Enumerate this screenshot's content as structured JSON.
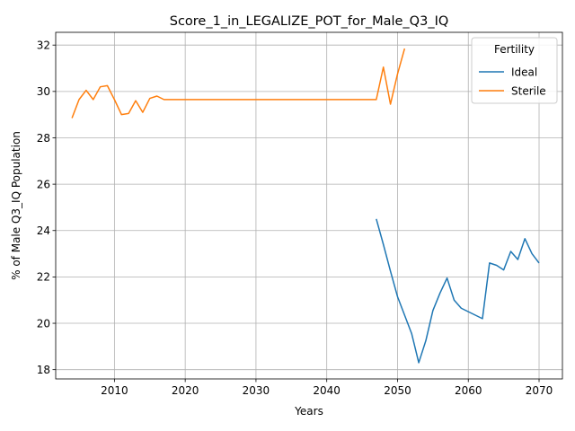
{
  "chart_data": {
    "type": "line",
    "title": "Score_1_in_LEGALIZE_POT_for_Male_Q3_IQ",
    "xlabel": "Years",
    "ylabel": "% of Male Q3_IQ Population",
    "xlim": [
      2001.7,
      2073.3
    ],
    "ylim": [
      17.6,
      32.55
    ],
    "xticks": [
      2010,
      2020,
      2030,
      2040,
      2050,
      2060,
      2070
    ],
    "yticks": [
      18,
      20,
      22,
      24,
      26,
      28,
      30,
      32
    ],
    "grid": true,
    "legend": {
      "title": "Fertility",
      "placement": "top-right"
    },
    "series": [
      {
        "name": "Ideal",
        "color": "#1f77b4",
        "x": [
          2047,
          2048,
          2049,
          2050,
          2051,
          2052,
          2053,
          2054,
          2055,
          2056,
          2057,
          2058,
          2059,
          2060,
          2061,
          2062,
          2063,
          2064,
          2065,
          2066,
          2067,
          2068,
          2069,
          2070
        ],
        "values": [
          24.5,
          23.4,
          22.25,
          21.15,
          20.35,
          19.55,
          18.3,
          19.25,
          20.55,
          21.3,
          21.95,
          21.0,
          20.65,
          20.5,
          20.35,
          20.2,
          22.6,
          22.5,
          22.3,
          23.1,
          22.75,
          23.65,
          23.0,
          22.6
        ]
      },
      {
        "name": "Sterile",
        "color": "#ff7f0e",
        "x": [
          2004,
          2005,
          2006,
          2007,
          2008,
          2009,
          2010,
          2011,
          2012,
          2013,
          2014,
          2015,
          2016,
          2017,
          2018,
          2019,
          2020,
          2021,
          2022,
          2023,
          2024,
          2025,
          2026,
          2027,
          2028,
          2029,
          2030,
          2031,
          2032,
          2033,
          2034,
          2035,
          2036,
          2037,
          2038,
          2039,
          2040,
          2041,
          2042,
          2043,
          2044,
          2045,
          2046,
          2047,
          2048,
          2049,
          2050,
          2051
        ],
        "values": [
          28.85,
          29.65,
          30.05,
          29.65,
          30.2,
          30.25,
          29.65,
          29.0,
          29.05,
          29.6,
          29.1,
          29.7,
          29.8,
          29.65,
          29.65,
          29.65,
          29.65,
          29.65,
          29.65,
          29.65,
          29.65,
          29.65,
          29.65,
          29.65,
          29.65,
          29.65,
          29.65,
          29.65,
          29.65,
          29.65,
          29.65,
          29.65,
          29.65,
          29.65,
          29.65,
          29.65,
          29.65,
          29.65,
          29.65,
          29.65,
          29.65,
          29.65,
          29.65,
          29.65,
          31.05,
          29.45,
          30.75,
          31.85
        ]
      }
    ]
  }
}
